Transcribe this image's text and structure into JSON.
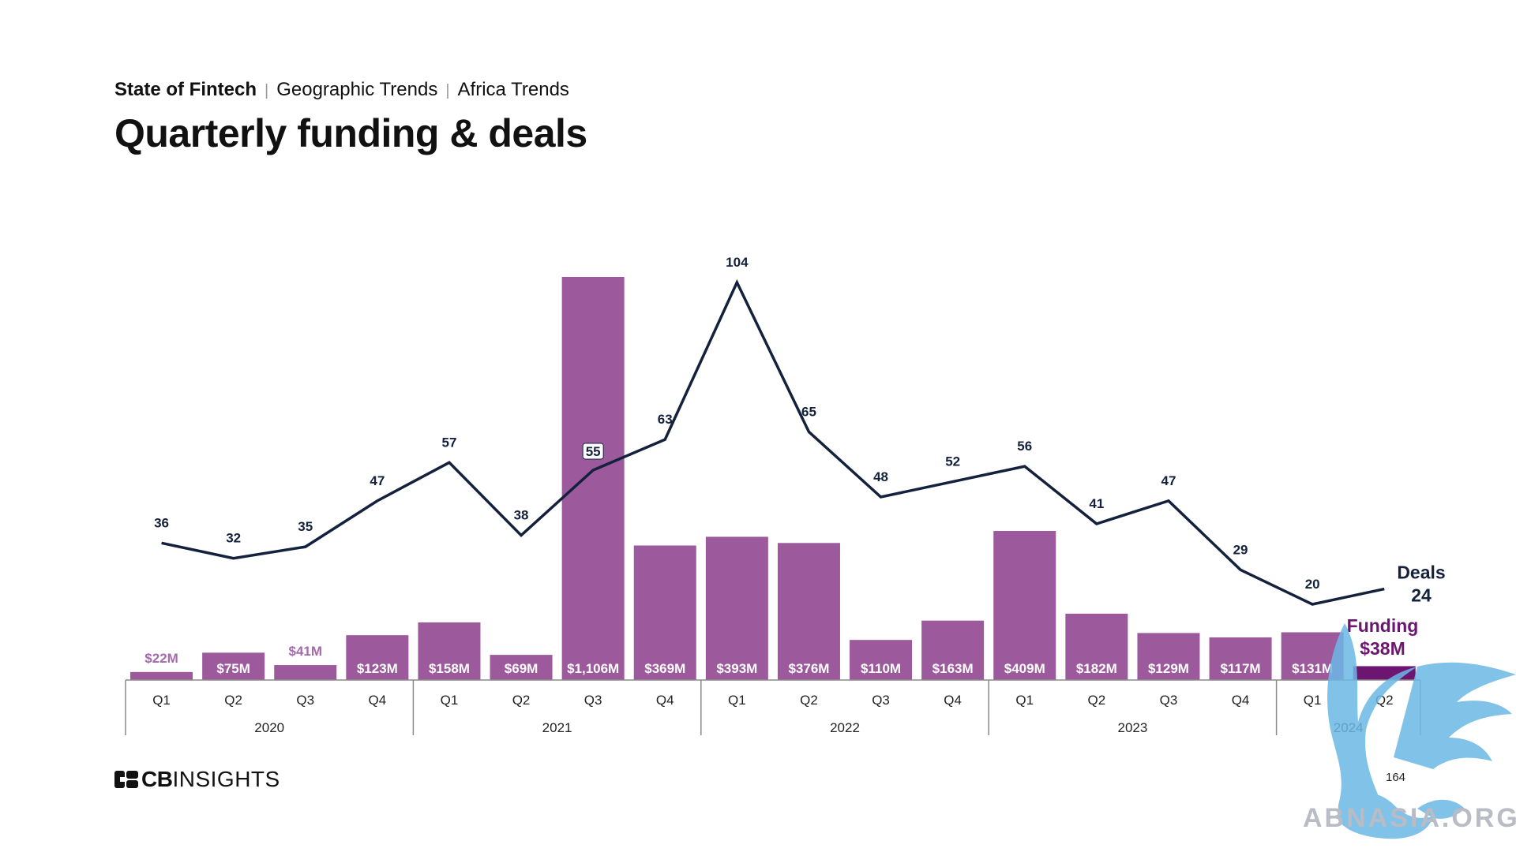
{
  "header": {
    "breadcrumb": [
      "State of Fintech",
      "Geographic Trends",
      "Africa Trends"
    ],
    "title": "Quarterly funding & deals"
  },
  "footer": {
    "logo_bold": "CB",
    "logo_text": "INSIGHTS",
    "page_number": "164",
    "watermark_text": "ABNASIA.ORG"
  },
  "colors": {
    "bar": "#9c5a9c",
    "bar_latest": "#6c1671",
    "line": "#14213d",
    "label_outside": "#a56aac",
    "axis": "#8a8a8a"
  },
  "chart_data": {
    "type": "bar",
    "categories": [
      {
        "quarter": "Q1",
        "year": "2020"
      },
      {
        "quarter": "Q2",
        "year": "2020"
      },
      {
        "quarter": "Q3",
        "year": "2020"
      },
      {
        "quarter": "Q4",
        "year": "2020"
      },
      {
        "quarter": "Q1",
        "year": "2021"
      },
      {
        "quarter": "Q2",
        "year": "2021"
      },
      {
        "quarter": "Q3",
        "year": "2021"
      },
      {
        "quarter": "Q4",
        "year": "2021"
      },
      {
        "quarter": "Q1",
        "year": "2022"
      },
      {
        "quarter": "Q2",
        "year": "2022"
      },
      {
        "quarter": "Q3",
        "year": "2022"
      },
      {
        "quarter": "Q4",
        "year": "2022"
      },
      {
        "quarter": "Q1",
        "year": "2023"
      },
      {
        "quarter": "Q2",
        "year": "2023"
      },
      {
        "quarter": "Q3",
        "year": "2023"
      },
      {
        "quarter": "Q4",
        "year": "2023"
      },
      {
        "quarter": "Q1",
        "year": "2024"
      },
      {
        "quarter": "Q2",
        "year": "2024"
      }
    ],
    "years": [
      "2020",
      "2021",
      "2022",
      "2023",
      "2024"
    ],
    "series": [
      {
        "name": "Funding",
        "type": "bar",
        "unit": "$M",
        "values": [
          22,
          75,
          41,
          123,
          158,
          69,
          1106,
          369,
          393,
          376,
          110,
          163,
          409,
          182,
          129,
          117,
          131,
          38
        ],
        "labels": [
          "$22M",
          "$75M",
          "$41M",
          "$123M",
          "$158M",
          "$69M",
          "$1,106M",
          "$369M",
          "$393M",
          "$376M",
          "$110M",
          "$163M",
          "$409M",
          "$182M",
          "$129M",
          "$117M",
          "$131M",
          ""
        ]
      },
      {
        "name": "Deals",
        "type": "line",
        "values": [
          36,
          32,
          35,
          47,
          57,
          38,
          55,
          63,
          104,
          65,
          48,
          52,
          56,
          41,
          47,
          29,
          20,
          24
        ],
        "labels": [
          "36",
          "32",
          "35",
          "47",
          "57",
          "38",
          "55",
          "63",
          "104",
          "65",
          "48",
          "52",
          "56",
          "41",
          "47",
          "29",
          "20",
          ""
        ]
      }
    ],
    "callouts": {
      "deals_label": "Deals",
      "deals_value": "24",
      "funding_label": "Funding",
      "funding_value": "$38M"
    }
  }
}
